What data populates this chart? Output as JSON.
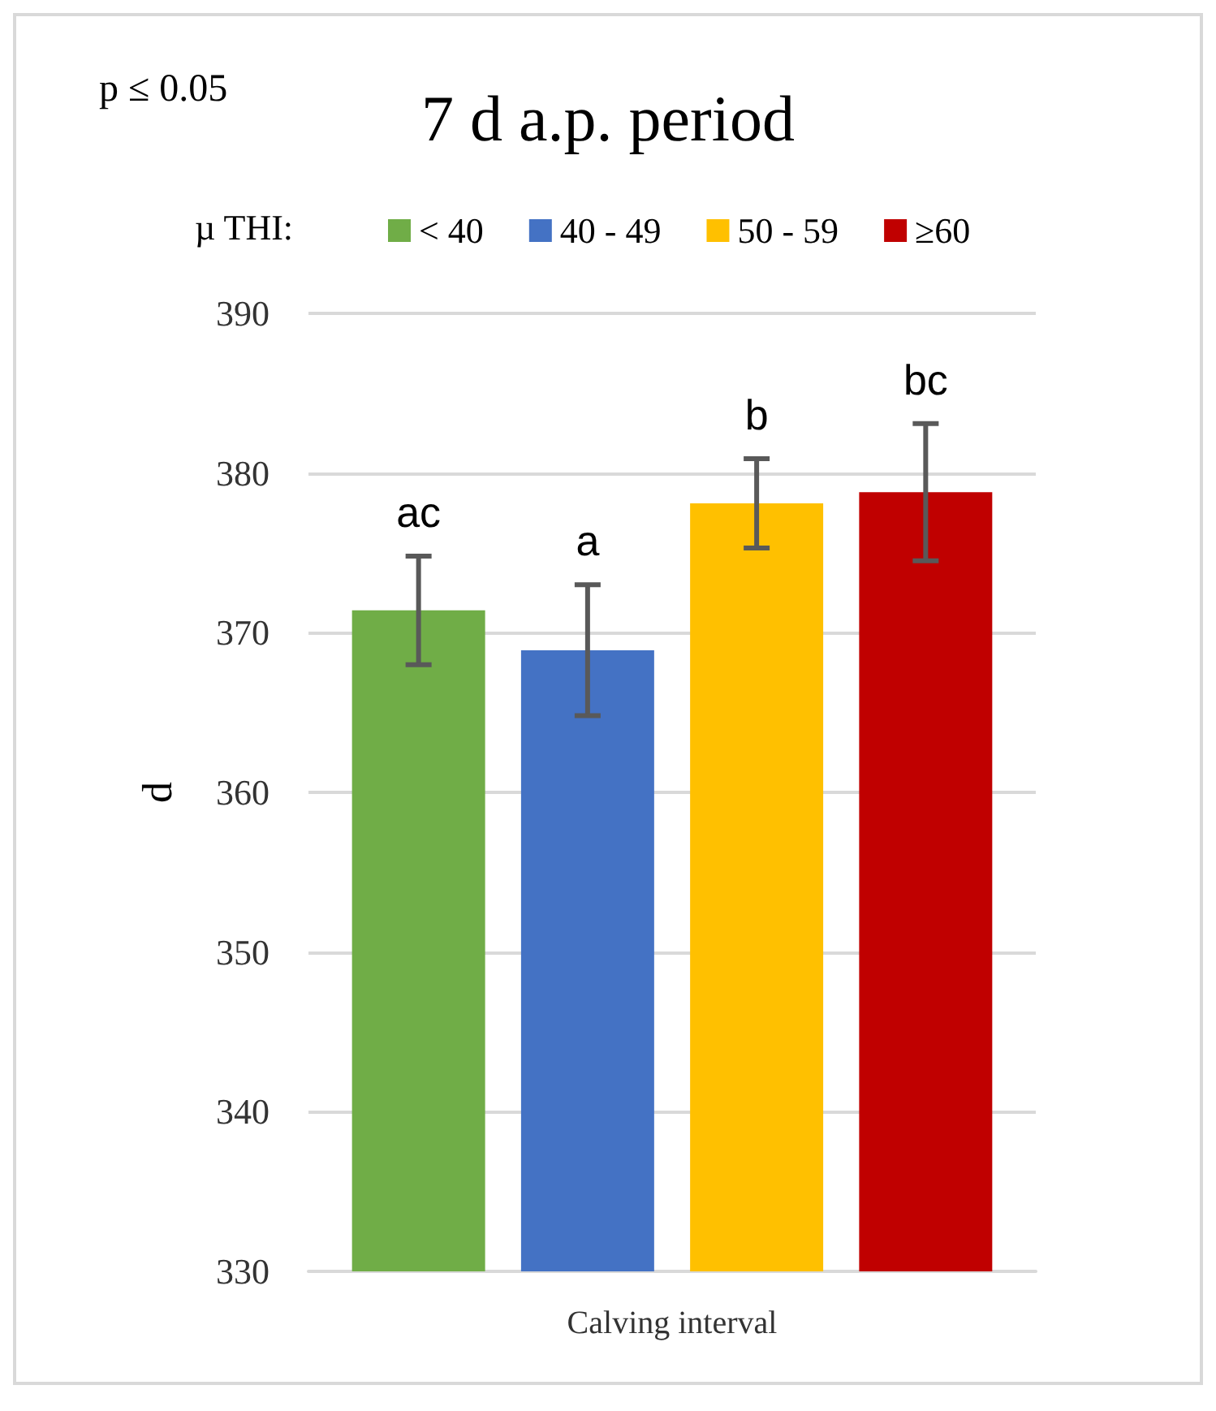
{
  "chart_data": {
    "type": "bar",
    "title": "7 d a.p. period",
    "ylabel": "d",
    "legend_title": "µ THI:",
    "annotations": [
      "p ≤ 0.05"
    ],
    "xlabel": "Calving interval",
    "categories": [
      null
    ],
    "series": [
      {
        "name": "< 40",
        "color": "#70ad47",
        "values": [
          371.4
        ],
        "errors": [
          3.4
        ],
        "value_labels": [
          "ac"
        ]
      },
      {
        "name": "40 - 49",
        "color": "#4472c4",
        "values": [
          368.9
        ],
        "errors": [
          4.1
        ],
        "value_labels": [
          "a"
        ]
      },
      {
        "name": "50 - 59",
        "color": "#ffc000",
        "values": [
          378.1
        ],
        "errors": [
          2.8
        ],
        "value_labels": [
          "b"
        ]
      },
      {
        "name": "≥60",
        "color": "#c00000",
        "values": [
          378.8
        ],
        "errors": [
          4.3
        ],
        "value_labels": [
          "bc"
        ]
      }
    ],
    "ylim": [
      330,
      390
    ],
    "yticks": [
      330,
      340,
      350,
      360,
      370,
      380,
      390
    ],
    "grid": "y",
    "legend": "top"
  }
}
